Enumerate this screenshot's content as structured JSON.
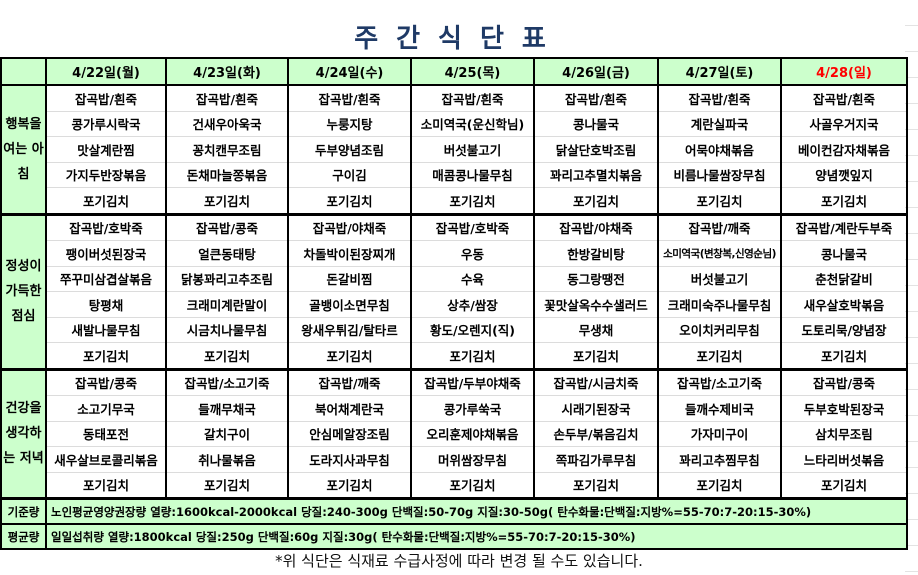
{
  "title": "주간식단표",
  "days": [
    {
      "label": "4/22일(월)",
      "color": "#000000"
    },
    {
      "label": "4/23일(화)",
      "color": "#000000"
    },
    {
      "label": "4/24일(수)",
      "color": "#000000"
    },
    {
      "label": "4/25(목)",
      "color": "#000000"
    },
    {
      "label": "4/26일(금)",
      "color": "#000000"
    },
    {
      "label": "4/27일(토)",
      "color": "#000000"
    },
    {
      "label": "4/28(일)",
      "color": "#ff0000"
    }
  ],
  "meals": [
    {
      "label": "행복을 여는 아침",
      "menus": [
        [
          "잡곡밥/흰죽",
          "콩가루시락국",
          "맛살계란찜",
          "가지두반장볶음",
          "포기김치"
        ],
        [
          "잡곡밥/흰죽",
          "건새우아욱국",
          "꽁치캔무조림",
          "돈채마늘쫑볶음",
          "포기김치"
        ],
        [
          "잡곡밥/흰죽",
          "누룽지탕",
          "두부양념조림",
          "구이김",
          "포기김치"
        ],
        [
          "잡곡밥/흰죽",
          "소미역국(운신학님)",
          "버섯불고기",
          "매콤콩나물무침",
          "포기김치"
        ],
        [
          "잡곡밥/흰죽",
          "콩나물국",
          "닭살단호박조림",
          "꽈리고추멸치볶음",
          "포기김치"
        ],
        [
          "잡곡밥/흰죽",
          "계란실파국",
          "어묵야채볶음",
          "비름나물쌈장무침",
          "포기김치"
        ],
        [
          "잡곡밥/흰죽",
          "사골우거지국",
          "베이컨감자채볶음",
          "양념깻잎지",
          "포기김치"
        ]
      ]
    },
    {
      "label": "정성이 가득한 점심",
      "menus": [
        [
          "잡곡밥/호박죽",
          "팽이버섯된장국",
          "쭈꾸미삼겹살볶음",
          "탕평채",
          "새발나물무침",
          "포기김치"
        ],
        [
          "잡곡밥/콩죽",
          "얼큰동태탕",
          "닭봉꽈리고추조림",
          "크래미계란말이",
          "시금치나물무침",
          "포기김치"
        ],
        [
          "잡곡밥/야채죽",
          "차돌박이된장찌개",
          "돈갈비찜",
          "골뱅이소면무침",
          "왕새우튀김/탈타르",
          "포기김치"
        ],
        [
          "잡곡밥/호박죽",
          "우동",
          "수육",
          "상추/쌈장",
          "황도/오렌지(직)",
          "포기김치"
        ],
        [
          "잡곡밥/야채죽",
          "한방갈비탕",
          "동그랑땡전",
          "꽃맛살옥수수샐러드",
          "무생채",
          "포기김치"
        ],
        [
          "잡곡밥/깨죽",
          "소미역국(변창복,신영순님)",
          "버섯불고기",
          "크래미숙주나물무침",
          "오이치커리무침",
          "포기김치"
        ],
        [
          "잡곡밥/계란두부죽",
          "콩나물국",
          "춘천닭갈비",
          "새우살호박볶음",
          "도토리묵/양념장",
          "포기김치"
        ]
      ]
    },
    {
      "label": "건강을 생각하는 저녁",
      "menus": [
        [
          "잡곡밥/콩죽",
          "소고기무국",
          "동태포전",
          "새우살브로콜리볶음",
          "포기김치"
        ],
        [
          "잡곡밥/소고기죽",
          "들깨무채국",
          "갈치구이",
          "취나물볶음",
          "포기김치"
        ],
        [
          "잡곡밥/깨죽",
          "북어채계란국",
          "안심메알장조림",
          "도라지사과무침",
          "포기김치"
        ],
        [
          "잡곡밥/두부야채죽",
          "콩가루쑥국",
          "오리훈제야채볶음",
          "머위쌈장무침",
          "포기김치"
        ],
        [
          "잡곡밥/시금치죽",
          "시래기된장국",
          "손두부/볶음김치",
          "쪽파김가루무침",
          "포기김치"
        ],
        [
          "잡곡밥/소고기죽",
          "들깨수제비국",
          "가자미구이",
          "꽈리고추찜무침",
          "포기김치"
        ],
        [
          "잡곡밥/콩죽",
          "두부호박된장국",
          "삼치무조림",
          "느타리버섯볶음",
          "포기김치"
        ]
      ]
    }
  ],
  "footer": [
    {
      "label": "기준량",
      "text": "노인평균영양권장량 열량:1600kcal-2000kcal 당질:240-300g 단백질:50-70g 지질:30-50g( 탄수화물:단백질:지방%=55-70:7-20:15-30%)"
    },
    {
      "label": "평균량",
      "text": "일일섭취량 열량:1800kcal 당질:250g 단백질:60g 지질:30g( 탄수화물:단백질:지방%=55-70:7-20:15-30%)"
    }
  ],
  "note": "*위 식단은 식재료 수급사정에 따라 변경 될 수도 있습니다.",
  "colors": {
    "header_bg": "#ccffcc",
    "title": "#1f3a66",
    "sunday": "#ff0000"
  }
}
